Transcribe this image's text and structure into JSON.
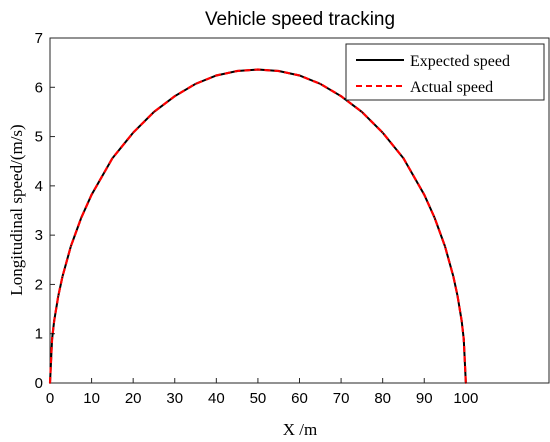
{
  "chart_data": {
    "type": "line",
    "title": "Vehicle speed tracking",
    "xlabel": "X /m",
    "ylabel": "Longitudinal speed/(m/s)",
    "xlim": [
      0,
      120
    ],
    "ylim": [
      0,
      7
    ],
    "xticks": [
      0,
      10,
      20,
      30,
      40,
      50,
      60,
      70,
      80,
      90,
      100
    ],
    "yticks": [
      0,
      1,
      2,
      3,
      4,
      5,
      6,
      7
    ],
    "grid": false,
    "legend_position": "top-right",
    "x": [
      0,
      0.5,
      1,
      2,
      3,
      5,
      7.5,
      10,
      15,
      20,
      25,
      30,
      35,
      40,
      45,
      50,
      55,
      60,
      65,
      70,
      75,
      80,
      85,
      90,
      92.5,
      95,
      97,
      98,
      99,
      99.5,
      100
    ],
    "series": [
      {
        "name": "Expected speed",
        "color": "#000000",
        "style": "solid",
        "values": [
          0,
          0.89,
          1.26,
          1.77,
          2.16,
          2.77,
          3.35,
          3.82,
          4.56,
          5.08,
          5.5,
          5.82,
          6.07,
          6.24,
          6.33,
          6.36,
          6.33,
          6.24,
          6.07,
          5.82,
          5.5,
          5.08,
          4.56,
          3.82,
          3.35,
          2.77,
          2.16,
          1.77,
          1.26,
          0.89,
          0
        ]
      },
      {
        "name": "Actual speed",
        "color": "#ff0000",
        "style": "dashed",
        "values": [
          0,
          0.89,
          1.26,
          1.77,
          2.16,
          2.77,
          3.35,
          3.82,
          4.56,
          5.08,
          5.5,
          5.82,
          6.07,
          6.24,
          6.33,
          6.36,
          6.33,
          6.24,
          6.07,
          5.82,
          5.5,
          5.08,
          4.56,
          3.82,
          3.35,
          2.77,
          2.16,
          1.77,
          1.26,
          0.89,
          0
        ]
      }
    ]
  }
}
